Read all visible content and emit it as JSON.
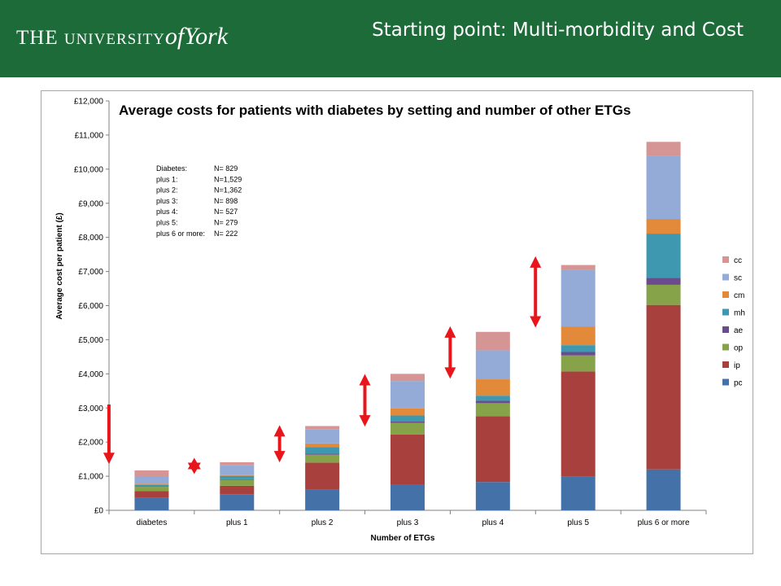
{
  "header": {
    "logo_text": {
      "the": "THE",
      "university": "UNIVERSITY",
      "of": "of",
      "york": "York"
    },
    "title": "Starting point: Multi-morbidity and Cost",
    "background_color": "#1e6b3a"
  },
  "chart_data": {
    "type": "bar",
    "stacked": true,
    "title": "Average costs for patients with diabetes by setting and number of other ETGs",
    "xlabel": "Number of ETGs",
    "ylabel": "Average cost per patient (£)",
    "ylim": [
      0,
      12000
    ],
    "yticks": [
      "£0",
      "£1,000",
      "£2,000",
      "£3,000",
      "£4,000",
      "£5,000",
      "£6,000",
      "£7,000",
      "£8,000",
      "£9,000",
      "£10,000",
      "£11,000",
      "£12,000"
    ],
    "grid": false,
    "legend_position": "right",
    "categories": [
      "diabetes",
      "plus 1",
      "plus 2",
      "plus 3",
      "plus 4",
      "plus 5",
      "plus 6 or more"
    ],
    "series": [
      {
        "name": "pc",
        "color": "#4472a8",
        "values": [
          380,
          470,
          600,
          750,
          830,
          1000,
          1200
        ]
      },
      {
        "name": "ip",
        "color": "#a8403e",
        "values": [
          180,
          250,
          800,
          1470,
          1930,
          3070,
          4820
        ]
      },
      {
        "name": "op",
        "color": "#87a34a",
        "values": [
          130,
          170,
          230,
          340,
          380,
          470,
          590
        ]
      },
      {
        "name": "ae",
        "color": "#6a4c8c",
        "values": [
          20,
          20,
          30,
          40,
          70,
          100,
          200
        ]
      },
      {
        "name": "mh",
        "color": "#3e98b0",
        "values": [
          30,
          100,
          190,
          180,
          150,
          200,
          1300
        ]
      },
      {
        "name": "cm",
        "color": "#e3893a",
        "values": [
          40,
          20,
          110,
          210,
          480,
          540,
          430
        ]
      },
      {
        "name": "sc",
        "color": "#93abd6",
        "values": [
          210,
          290,
          420,
          800,
          850,
          1680,
          1840
        ]
      },
      {
        "name": "cc",
        "color": "#d69595",
        "values": [
          180,
          90,
          90,
          210,
          540,
          130,
          420
        ]
      }
    ],
    "annotation": {
      "lines": [
        {
          "label": "Diabetes:",
          "value": "N=  829"
        },
        {
          "label": "plus 1:",
          "value": "N=1,529"
        },
        {
          "label": "plus 2:",
          "value": "N=1,362"
        },
        {
          "label": "plus 3:",
          "value": "N=  898"
        },
        {
          "label": "plus 4:",
          "value": "N=  527"
        },
        {
          "label": "plus 5:",
          "value": "N=  279"
        },
        {
          "label": "plus 6 or more:",
          "value": "N=  222"
        }
      ]
    },
    "arrows": {
      "color": "#e8151b",
      "items": [
        {
          "category": "diabetes",
          "type": "down",
          "from": 3100,
          "to": 1450
        },
        {
          "category": "plus 1",
          "type": "star",
          "at": 1300
        },
        {
          "category": "plus 2",
          "type": "double",
          "from": 2400,
          "to": 1500
        },
        {
          "category": "plus 3",
          "type": "double",
          "from": 3900,
          "to": 2550
        },
        {
          "category": "plus 4",
          "type": "double",
          "from": 5300,
          "to": 3950
        },
        {
          "category": "plus 5",
          "type": "double",
          "from": 7350,
          "to": 5450
        }
      ]
    }
  }
}
